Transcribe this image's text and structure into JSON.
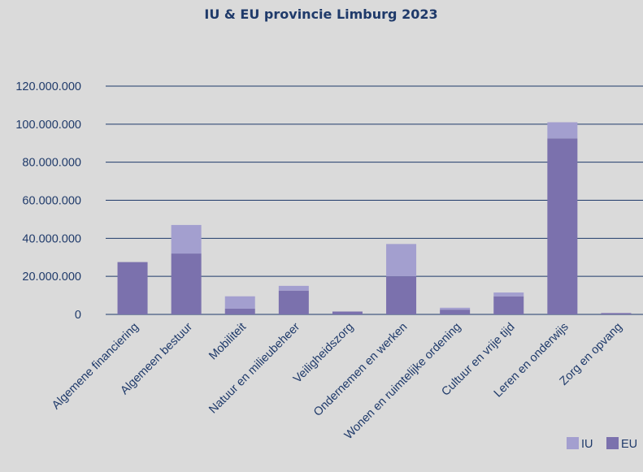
{
  "chart_data": {
    "type": "bar",
    "stacked": true,
    "title": "IU & EU provincie Limburg 2023",
    "categories": [
      "Algemene financiering",
      "Algemeen bestuur",
      "Mobiliteit",
      "Natuur en milieubeheer",
      "Veiligheidszorg",
      "Ondernemen en werken",
      "Wonen en ruimtelijke ordening",
      "Cultuur en vrije tijd",
      "Leren en onderwijs",
      "Zorg en opvang"
    ],
    "series": [
      {
        "name": "EU",
        "values": [
          27500000,
          32000000,
          3000000,
          12500000,
          1500000,
          20000000,
          2500000,
          9500000,
          92500000,
          700000
        ]
      },
      {
        "name": "IU",
        "values": [
          0,
          15000000,
          6500000,
          2500000,
          0,
          17000000,
          1000000,
          2000000,
          8500000,
          0
        ]
      }
    ],
    "ylim": [
      0,
      120000000
    ],
    "yticks": [
      "0",
      "20.000.000",
      "40.000.000",
      "60.000.000",
      "80.000.000",
      "100.000.000",
      "120.000.000"
    ],
    "ytick_values": [
      0,
      20000000,
      40000000,
      60000000,
      80000000,
      100000000,
      120000000
    ],
    "grid": true,
    "legend_position": "bottom-right",
    "legend": [
      "IU",
      "EU"
    ],
    "colors": {
      "EU": "#7b71ad",
      "IU": "#a39fcf",
      "title": "#1f3a6a",
      "text": "#1f3a6a",
      "grid": "#1f3a6a",
      "background": "#dadada"
    }
  }
}
